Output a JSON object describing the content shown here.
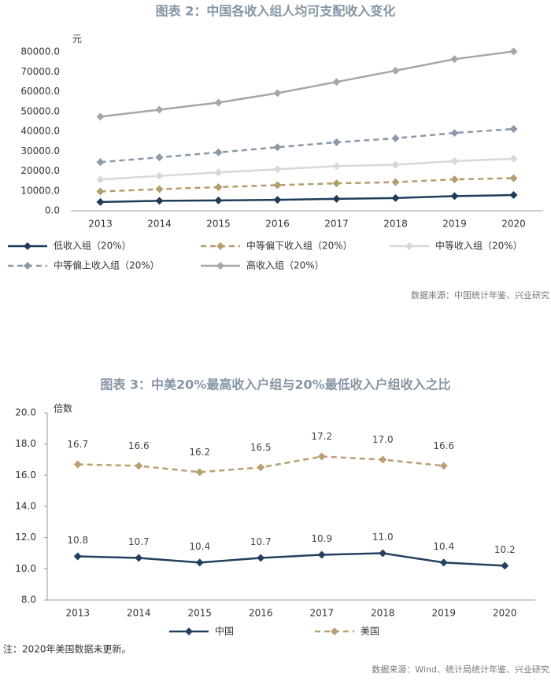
{
  "chart_data": [
    {
      "type": "line",
      "title": "图表 2：中国各收入组人均可支配收入变化",
      "y_label": "元",
      "source": "数据来源：中国统计年鉴、兴业研究",
      "categories": [
        "2013",
        "2014",
        "2015",
        "2016",
        "2017",
        "2018",
        "2019",
        "2020"
      ],
      "ylim": [
        0,
        84000
      ],
      "yticks": [
        {
          "value": 0,
          "label": "0.0"
        },
        {
          "value": 10000,
          "label": "10000.0"
        },
        {
          "value": 20000,
          "label": "20000.0"
        },
        {
          "value": 30000,
          "label": "30000.0"
        },
        {
          "value": 40000,
          "label": "40000.0"
        },
        {
          "value": 50000,
          "label": "50000.0"
        },
        {
          "value": 60000,
          "label": "60000.0"
        },
        {
          "value": 70000,
          "label": "70000.0"
        },
        {
          "value": 80000,
          "label": "80000.0"
        }
      ],
      "series": [
        {
          "name": "低收入组（20%）",
          "color": "#1f3d5a",
          "dashed": false,
          "values": [
            4400,
            5000,
            5200,
            5500,
            6000,
            6400,
            7400,
            7900
          ]
        },
        {
          "name": "中等偏下收入组（20%）",
          "color": "#b49d6c",
          "dashed": true,
          "values": [
            9700,
            10900,
            11900,
            12900,
            13800,
            14400,
            15800,
            16400
          ]
        },
        {
          "name": "中等收入组（20%）",
          "color": "#d8d8d8",
          "dashed": false,
          "values": [
            15700,
            17600,
            19300,
            20900,
            22500,
            23200,
            25000,
            26200
          ]
        },
        {
          "name": "中等偏上收入组（20%）",
          "color": "#8a9aa8",
          "dashed": true,
          "values": [
            24500,
            26900,
            29400,
            32000,
            34500,
            36500,
            39200,
            41200
          ]
        },
        {
          "name": "高收入组（20%）",
          "color": "#a6a6a6",
          "dashed": false,
          "values": [
            47400,
            50900,
            54500,
            59300,
            64900,
            70600,
            76400,
            80300
          ]
        }
      ]
    },
    {
      "type": "line",
      "title": "图表 3：中美20%最高收入户组与20%最低收入户组收入之比",
      "y_label": "倍数",
      "note": "注：2020年美国数据未更新。",
      "source": "数据来源：Wind、统计局统计年鉴、兴业研究",
      "categories": [
        "2013",
        "2014",
        "2015",
        "2016",
        "2017",
        "2018",
        "2019",
        "2020"
      ],
      "ylim": [
        8,
        20
      ],
      "yticks": [
        {
          "value": 8,
          "label": "8.0"
        },
        {
          "value": 10,
          "label": "10.0"
        },
        {
          "value": 12,
          "label": "12.0"
        },
        {
          "value": 14,
          "label": "14.0"
        },
        {
          "value": 16,
          "label": "16.0"
        },
        {
          "value": 18,
          "label": "18.0"
        },
        {
          "value": 20,
          "label": "20.0"
        }
      ],
      "series": [
        {
          "name": "中国",
          "color": "#24405e",
          "dashed": false,
          "values": [
            10.8,
            10.7,
            10.4,
            10.7,
            10.9,
            11.0,
            10.4,
            10.2
          ],
          "value_labels": [
            "10.8",
            "10.7",
            "10.4",
            "10.7",
            "10.9",
            "11.0",
            "10.4",
            "10.2"
          ]
        },
        {
          "name": "美国",
          "color": "#b8a070",
          "dashed": true,
          "values": [
            16.7,
            16.6,
            16.2,
            16.5,
            17.2,
            17.0,
            16.6,
            null
          ],
          "value_labels": [
            "16.7",
            "16.6",
            "16.2",
            "16.5",
            "17.2",
            "17.0",
            "16.6",
            null
          ]
        }
      ]
    }
  ]
}
